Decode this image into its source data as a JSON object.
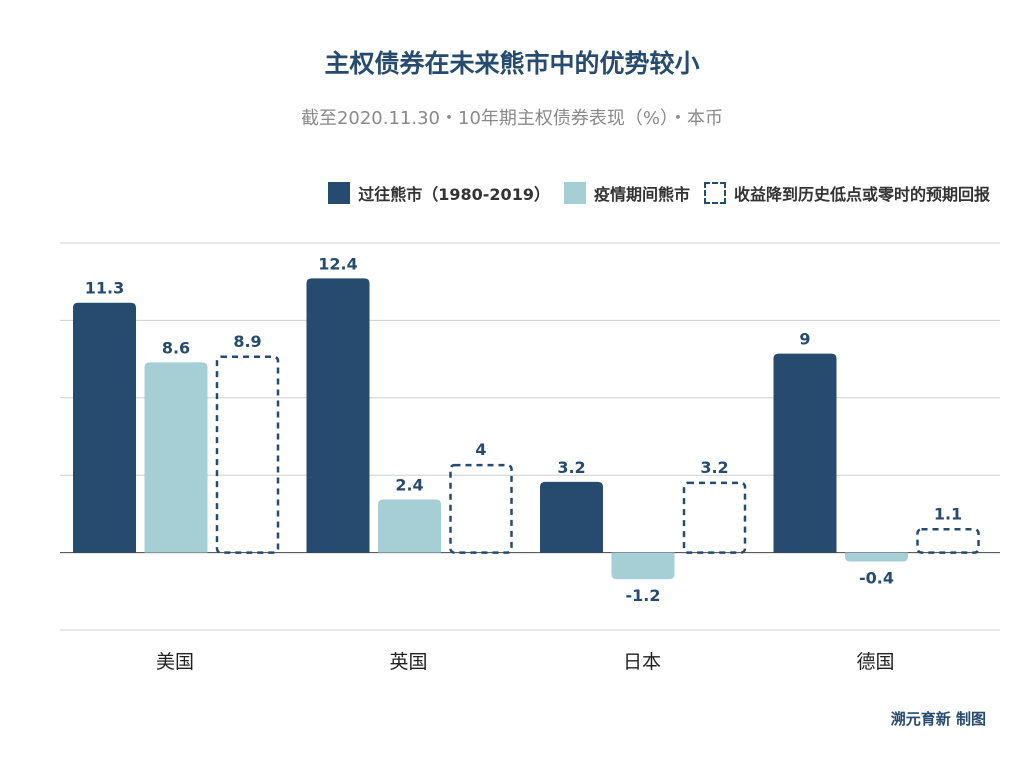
{
  "chart_data": {
    "type": "bar",
    "title": "主权债券在未来熊市中的优势较小",
    "subtitle": "截至2020.11.30・10年期主权债券表现（%）・本币",
    "categories": [
      "美国",
      "英国",
      "日本",
      "德国"
    ],
    "series": [
      {
        "name": "过往熊市（1980-2019）",
        "values": [
          11.3,
          12.4,
          3.2,
          9
        ],
        "color": "#264b6e",
        "style": "solid"
      },
      {
        "name": "疫情期间熊市",
        "values": [
          8.6,
          2.4,
          -1.2,
          -0.4
        ],
        "color": "#a6cfd5",
        "style": "solid"
      },
      {
        "name": "收益降到历史低点或零时的预期回报",
        "values": [
          8.9,
          4,
          3.2,
          1.1
        ],
        "color": "#264b6e",
        "style": "dashed"
      }
    ],
    "ylim": [
      -3.5,
      14
    ],
    "grid": true,
    "legend_position": "top-right",
    "data_labels": true
  },
  "credit": "溯元育新 制图"
}
